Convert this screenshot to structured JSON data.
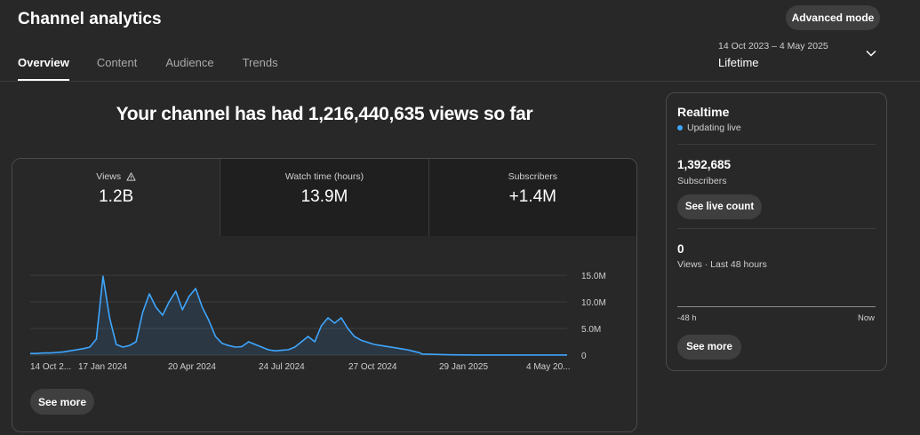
{
  "header": {
    "title": "Channel analytics",
    "advanced_mode_label": "Advanced mode",
    "tabs": [
      {
        "label": "Overview",
        "active": true
      },
      {
        "label": "Content",
        "active": false
      },
      {
        "label": "Audience",
        "active": false
      },
      {
        "label": "Trends",
        "active": false
      }
    ],
    "date_range": "14 Oct 2023 – 4 May 2025",
    "date_label": "Lifetime",
    "dropdown_icon": "chevron-down-icon"
  },
  "headline": "Your channel has had 1,216,440,635 views so far",
  "metrics": [
    {
      "label": "Views",
      "value": "1.2B",
      "icon": "warning-icon",
      "active": true
    },
    {
      "label": "Watch time (hours)",
      "value": "13.9M",
      "active": false
    },
    {
      "label": "Subscribers",
      "value": "+1.4M",
      "active": false
    }
  ],
  "main_see_more": "See more",
  "chart_data": {
    "type": "area",
    "series": [
      {
        "x": [
          "14 Oct 2023",
          "21 Oct 2023",
          "28 Oct 2023",
          "4 Nov 2023",
          "11 Nov 2023",
          "18 Nov 2023",
          "25 Nov 2023",
          "2 Dec 2023",
          "9 Dec 2023",
          "16 Dec 2023",
          "23 Dec 2023",
          "30 Dec 2023",
          "6 Jan 2024",
          "13 Jan 2024",
          "20 Jan 2024",
          "27 Jan 2024",
          "3 Feb 2024",
          "10 Feb 2024",
          "17 Feb 2024",
          "24 Feb 2024",
          "2 Mar 2024",
          "9 Mar 2024",
          "16 Mar 2024",
          "23 Mar 2024",
          "30 Mar 2024",
          "6 Apr 2024",
          "13 Apr 2024",
          "20 Apr 2024",
          "27 Apr 2024",
          "4 May 2024",
          "11 May 2024",
          "18 May 2024",
          "25 May 2024",
          "1 Jun 2024",
          "8 Jun 2024",
          "15 Jun 2024",
          "22 Jun 2024",
          "29 Jun 2024",
          "6 Jul 2024",
          "13 Jul 2024",
          "20 Jul 2024",
          "27 Jul 2024",
          "3 Aug 2024",
          "10 Aug 2024",
          "17 Aug 2024",
          "24 Aug 2024",
          "31 Aug 2024",
          "7 Sep 2024",
          "14 Sep 2024",
          "21 Sep 2024",
          "28 Sep 2024",
          "5 Oct 2024",
          "12 Oct 2024",
          "19 Oct 2024",
          "26 Oct 2024",
          "2 Nov 2024",
          "9 Nov 2024",
          "16 Nov 2024",
          "23 Nov 2024",
          "30 Nov 2024",
          "1 Dec 2024",
          "1 Jan 2025",
          "1 Feb 2025",
          "1 Mar 2025",
          "1 Apr 2025",
          "4 May 2025"
        ],
        "values": [
          0.3,
          0.3,
          0.4,
          0.4,
          0.5,
          0.6,
          0.8,
          1.0,
          1.2,
          1.5,
          3.0,
          14.8,
          7.0,
          2.0,
          1.5,
          1.8,
          2.5,
          8.0,
          11.5,
          9.0,
          7.5,
          10.0,
          12.0,
          8.5,
          11.0,
          12.5,
          9.0,
          6.5,
          3.5,
          2.2,
          1.8,
          1.5,
          1.6,
          2.5,
          2.0,
          1.5,
          1.0,
          0.8,
          0.9,
          1.0,
          1.5,
          2.5,
          3.5,
          2.5,
          5.5,
          7.0,
          6.0,
          7.0,
          5.0,
          3.5,
          2.8,
          2.4,
          2.0,
          1.8,
          1.6,
          1.4,
          1.2,
          1.0,
          0.7,
          0.4,
          0.2,
          0.05,
          0.02,
          0.02,
          0.02,
          0.02
        ]
      }
    ],
    "x_tick_labels": [
      "14 Oct 2...",
      "17 Jan 2024",
      "20 Apr 2024",
      "24 Jul 2024",
      "27 Oct 2024",
      "29 Jan 2025",
      "4 May 20..."
    ],
    "y_tick_labels": [
      "0",
      "5.0M",
      "10.0M",
      "15.0M"
    ],
    "ylim": [
      0,
      15
    ],
    "grid": true,
    "color": "#3ea6ff"
  },
  "realtime": {
    "title": "Realtime",
    "status": "Updating live",
    "subscribers_value": "1,392,685",
    "subscribers_label": "Subscribers",
    "live_count_label": "See live count",
    "views_value": "0",
    "views_label": "Views · Last 48 hours",
    "axis_left": "-48 h",
    "axis_right": "Now",
    "see_more_label": "See more"
  }
}
